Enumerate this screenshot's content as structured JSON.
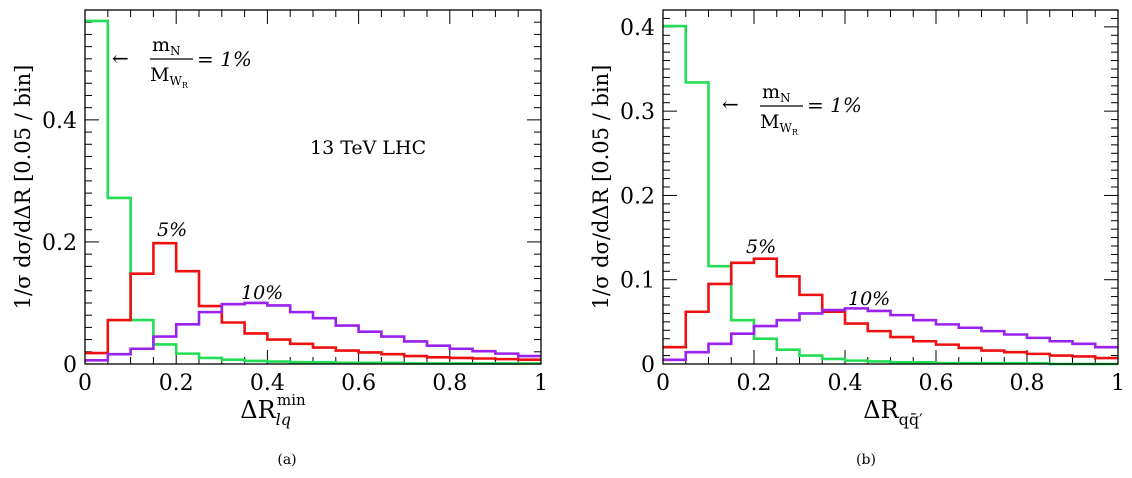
{
  "chart_data": [
    {
      "type": "histogram",
      "panel": "(a)",
      "ylabel": "1/σ dσ/dΔR  [0.05 / bin]",
      "xlabel": {
        "base": "ΔR",
        "sub": "lq",
        "sup": "min"
      },
      "xlim": [
        0,
        1
      ],
      "ylim": [
        0,
        0.58
      ],
      "xticks": [
        "0",
        "0.2",
        "0.4",
        "0.6",
        "0.8",
        "1"
      ],
      "yticks": [
        "0",
        "0.2",
        "0.4"
      ],
      "ytick_values": [
        0,
        0.2,
        0.4
      ],
      "text": "13 TeV LHC",
      "bin_edges": [
        0,
        0.05,
        0.1,
        0.15,
        0.2,
        0.25,
        0.3,
        0.35,
        0.4,
        0.45,
        0.5,
        0.55,
        0.6,
        0.65,
        0.7,
        0.75,
        0.8,
        0.85,
        0.9,
        0.95,
        1.0
      ],
      "series": [
        {
          "name": "1%",
          "color": "#22dd55",
          "values": [
            0.562,
            0.272,
            0.072,
            0.032,
            0.017,
            0.01,
            0.007,
            0.005,
            0.004,
            0.003,
            0.003,
            0.002,
            0.002,
            0.002,
            0.001,
            0.001,
            0.001,
            0.001,
            0.001,
            0.001
          ]
        },
        {
          "name": "5%",
          "color": "#ee1111",
          "values": [
            0.018,
            0.072,
            0.148,
            0.198,
            0.152,
            0.095,
            0.068,
            0.05,
            0.04,
            0.033,
            0.027,
            0.022,
            0.019,
            0.016,
            0.013,
            0.011,
            0.01,
            0.009,
            0.008,
            0.007
          ]
        },
        {
          "name": "10%",
          "color": "#9922ee",
          "values": [
            0.006,
            0.016,
            0.025,
            0.045,
            0.065,
            0.085,
            0.098,
            0.1,
            0.096,
            0.085,
            0.075,
            0.063,
            0.053,
            0.045,
            0.037,
            0.03,
            0.025,
            0.021,
            0.017,
            0.013
          ]
        }
      ],
      "annotations": {
        "ratio_num": "m",
        "ratio_num_sub": "N",
        "ratio_den": "M",
        "ratio_den_sub": "W",
        "ratio_den_subsub": "R",
        "ratio_value": "= 1%",
        "arrow": "←",
        "label_5": "5%",
        "label_10": "10%"
      }
    },
    {
      "type": "histogram",
      "panel": "(b)",
      "ylabel": "1/σ dσ/dΔR  [0.05 / bin]",
      "xlabel": {
        "base": "ΔR",
        "sub": "qq̄′"
      },
      "xlim": [
        0,
        1
      ],
      "ylim": [
        0,
        0.42
      ],
      "xticks": [
        "0",
        "0.2",
        "0.4",
        "0.6",
        "0.8",
        "1"
      ],
      "yticks": [
        "0",
        "0.1",
        "0.2",
        "0.3",
        "0.4"
      ],
      "ytick_values": [
        0,
        0.1,
        0.2,
        0.3,
        0.4
      ],
      "bin_edges": [
        0,
        0.05,
        0.1,
        0.15,
        0.2,
        0.25,
        0.3,
        0.35,
        0.4,
        0.45,
        0.5,
        0.55,
        0.6,
        0.65,
        0.7,
        0.75,
        0.8,
        0.85,
        0.9,
        0.95,
        1.0
      ],
      "series": [
        {
          "name": "1%",
          "color": "#22dd55",
          "values": [
            0.401,
            0.334,
            0.116,
            0.052,
            0.03,
            0.017,
            0.01,
            0.006,
            0.004,
            0.003,
            0.002,
            0.002,
            0.001,
            0.001,
            0.001,
            0.001,
            0.001,
            0.0,
            0.0,
            0.0
          ]
        },
        {
          "name": "5%",
          "color": "#ee1111",
          "values": [
            0.02,
            0.062,
            0.095,
            0.12,
            0.125,
            0.104,
            0.082,
            0.062,
            0.048,
            0.039,
            0.032,
            0.027,
            0.023,
            0.019,
            0.016,
            0.014,
            0.012,
            0.01,
            0.009,
            0.007
          ]
        },
        {
          "name": "10%",
          "color": "#9922ee",
          "values": [
            0.005,
            0.014,
            0.024,
            0.036,
            0.045,
            0.052,
            0.06,
            0.064,
            0.066,
            0.063,
            0.058,
            0.052,
            0.047,
            0.043,
            0.039,
            0.035,
            0.031,
            0.027,
            0.024,
            0.02
          ]
        }
      ],
      "annotations": {
        "ratio_num": "m",
        "ratio_num_sub": "N",
        "ratio_den": "M",
        "ratio_den_sub": "W",
        "ratio_den_subsub": "R",
        "ratio_value": "= 1%",
        "arrow": "←",
        "label_5": "5%",
        "label_10": "10%"
      }
    }
  ]
}
